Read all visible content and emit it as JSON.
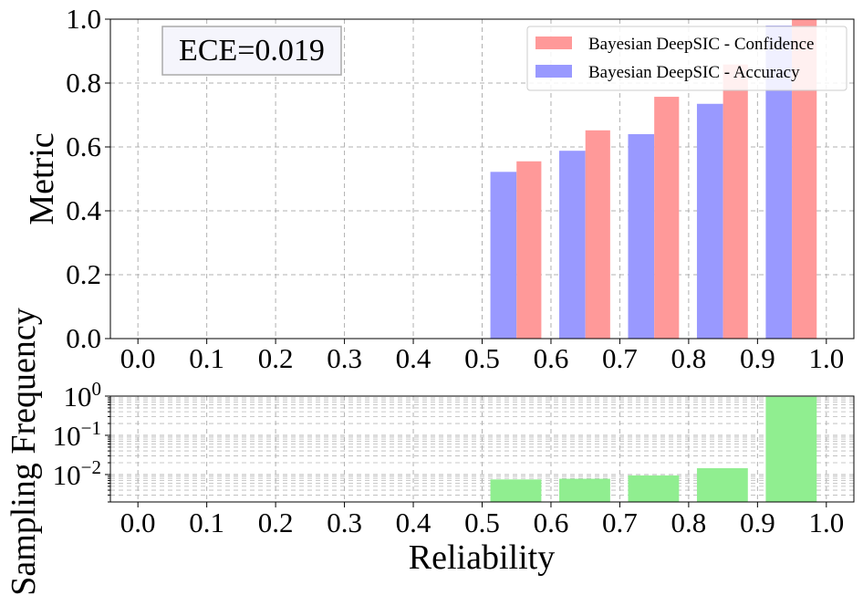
{
  "chart_data": [
    {
      "type": "bar",
      "panel": "top",
      "ylabel": "Metric",
      "ylim": [
        0,
        1.0
      ],
      "xlim": [
        -0.04,
        1.04
      ],
      "xticks": [
        "0.0",
        "0.1",
        "0.2",
        "0.3",
        "0.4",
        "0.5",
        "0.6",
        "0.7",
        "0.8",
        "0.9",
        "1.0"
      ],
      "yticks": [
        "0.0",
        "0.2",
        "0.4",
        "0.6",
        "0.8",
        "1.0"
      ],
      "grid": true,
      "legend_position": "top-right",
      "annotation": "ECE=0.019",
      "bin_centers": [
        0.55,
        0.65,
        0.75,
        0.85,
        0.95
      ],
      "series": [
        {
          "name": "Bayesian DeepSIC - Confidence",
          "color": "#ff9999",
          "values": [
            0.555,
            0.652,
            0.757,
            0.858,
            1.0
          ]
        },
        {
          "name": "Bayesian DeepSIC - Accuracy",
          "color": "#9999ff",
          "values": [
            0.522,
            0.588,
            0.64,
            0.735,
            0.98
          ]
        }
      ]
    },
    {
      "type": "bar",
      "panel": "bottom",
      "ylabel": "Sampling Frequency",
      "xlabel": "Reliability",
      "yscale": "log",
      "ylim": [
        0.002,
        1.0
      ],
      "xlim": [
        -0.04,
        1.04
      ],
      "xticks": [
        "0.0",
        "0.1",
        "0.2",
        "0.3",
        "0.4",
        "0.5",
        "0.6",
        "0.7",
        "0.8",
        "0.9",
        "1.0"
      ],
      "yticks": [
        {
          "value": 0.01,
          "base": "10",
          "exp": "−2"
        },
        {
          "value": 0.1,
          "base": "10",
          "exp": "−1"
        },
        {
          "value": 1.0,
          "base": "10",
          "exp": "0"
        }
      ],
      "grid": true,
      "bin_centers": [
        0.55,
        0.65,
        0.75,
        0.85,
        0.95
      ],
      "series": [
        {
          "name": "",
          "color": "#90ee90",
          "values": [
            0.0075,
            0.0078,
            0.0095,
            0.0145,
            0.96
          ]
        }
      ]
    }
  ]
}
